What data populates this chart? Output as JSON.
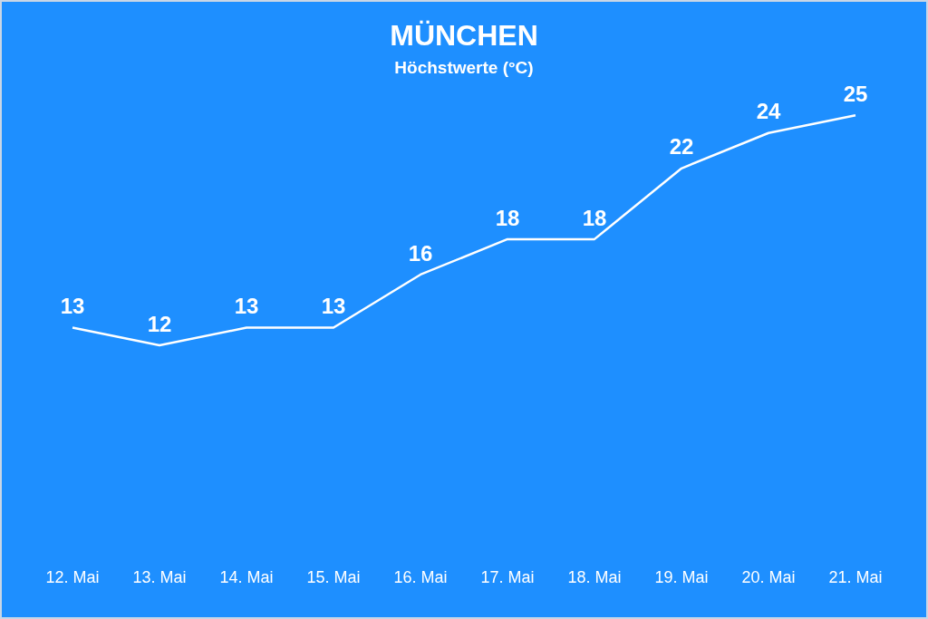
{
  "chart_data": {
    "type": "line",
    "title": "MÜNCHEN",
    "subtitle": "Höchstwerte (°C)",
    "categories": [
      "12. Mai",
      "13. Mai",
      "14. Mai",
      "15. Mai",
      "16. Mai",
      "17. Mai",
      "18. Mai",
      "19. Mai",
      "20. Mai",
      "21. Mai"
    ],
    "values": [
      13,
      12,
      13,
      13,
      16,
      18,
      18,
      22,
      24,
      25
    ],
    "color": "#ffffff",
    "data_labels": true,
    "grid": false,
    "legend": false,
    "marker": "none",
    "line_style": "solid",
    "tick_labels": "x"
  }
}
